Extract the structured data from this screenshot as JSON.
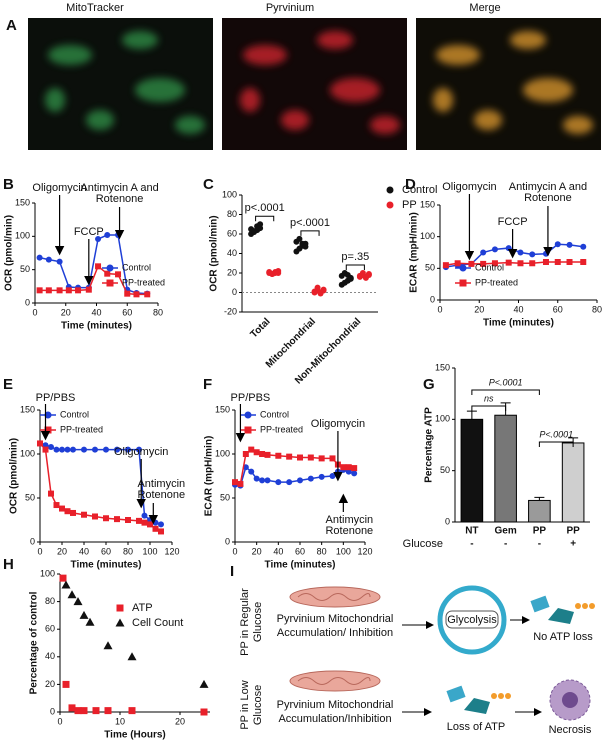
{
  "panel_a": {
    "letter": "A",
    "labels": [
      "MitoTracker",
      "Pyrvinium",
      "Merge"
    ]
  },
  "chart_data": [
    {
      "type": "line",
      "panel": "B",
      "xlabel": "Time (minutes)",
      "ylabel": "OCR (pmol/min)",
      "xlim": [
        0,
        80
      ],
      "xticks": [
        0,
        20,
        40,
        60,
        80
      ],
      "ylim": [
        0,
        150
      ],
      "yticks": [
        0,
        50,
        100,
        150
      ],
      "x": [
        3,
        9,
        16,
        22,
        28,
        35,
        41,
        47,
        54,
        60,
        66,
        73
      ],
      "series": [
        {
          "name": "Control",
          "color": "#1f3fd6",
          "marker": "circle",
          "values": [
            68,
            65,
            62,
            24,
            23,
            23,
            96,
            102,
            102,
            20,
            15,
            14
          ]
        },
        {
          "name": "PP-treated",
          "color": "#e8202a",
          "marker": "square",
          "values": [
            19,
            19,
            19,
            19,
            19,
            20,
            55,
            44,
            43,
            14,
            13,
            13
          ]
        }
      ],
      "annotations": [
        {
          "text": [
            "Oligomycin"
          ],
          "x": 16
        },
        {
          "text": [
            "FCCP"
          ],
          "x": 35
        },
        {
          "text": [
            "Antimycin A and",
            "Rotenone"
          ],
          "x": 55
        }
      ]
    },
    {
      "type": "strip",
      "panel": "C",
      "ylabel": "OCR (pmol/min)",
      "ylim": [
        -20,
        100
      ],
      "yticks": [
        -20,
        0,
        20,
        40,
        60,
        80,
        100
      ],
      "categories": [
        "Total",
        "Mitochondrial",
        "Non-Mitochondrial"
      ],
      "series": [
        {
          "name": "Control",
          "color": "#111111",
          "values": [
            [
              60,
              62,
              64,
              66,
              65,
              63,
              68,
              70
            ],
            [
              42,
              45,
              48,
              50,
              52,
              55,
              50,
              47
            ],
            [
              8,
              10,
              12,
              15,
              17,
              20,
              18,
              14
            ]
          ]
        },
        {
          "name": "PP",
          "color": "#e8202a",
          "values": [
            [
              20,
              19,
              21,
              20,
              21,
              19,
              20,
              22
            ],
            [
              0,
              2,
              -1,
              3,
              1,
              5,
              0,
              2
            ],
            [
              16,
              18,
              15,
              19,
              17,
              20,
              16,
              18
            ]
          ]
        }
      ],
      "p_values": [
        "p<.0001",
        "p<.0001",
        "p=.35"
      ]
    },
    {
      "type": "line",
      "panel": "D",
      "xlabel": "Time (minutes)",
      "ylabel": "ECAR (mpH/min)",
      "xlim": [
        0,
        80
      ],
      "xticks": [
        0,
        20,
        40,
        60,
        80
      ],
      "ylim": [
        0,
        150
      ],
      "yticks": [
        0,
        50,
        100,
        150
      ],
      "x": [
        3,
        9,
        16,
        22,
        28,
        35,
        41,
        47,
        54,
        60,
        66,
        73
      ],
      "series": [
        {
          "name": "Control",
          "color": "#1f3fd6",
          "marker": "circle",
          "values": [
            52,
            55,
            57,
            75,
            80,
            82,
            75,
            72,
            73,
            88,
            87,
            84
          ]
        },
        {
          "name": "PP-treated",
          "color": "#e8202a",
          "marker": "square",
          "values": [
            55,
            58,
            57,
            57,
            58,
            59,
            58,
            58,
            60,
            60,
            60,
            60
          ]
        }
      ],
      "annotations": [
        {
          "text": [
            "Oligomycin"
          ],
          "x": 15
        },
        {
          "text": [
            "FCCP"
          ],
          "x": 37
        },
        {
          "text": [
            "Antimycin A and",
            "Rotenone"
          ],
          "x": 55
        }
      ]
    },
    {
      "type": "line",
      "panel": "E",
      "xlabel": "Time (minutes)",
      "ylabel": "OCR (pmol/min)",
      "xlim": [
        0,
        120
      ],
      "xticks": [
        0,
        20,
        40,
        60,
        80,
        100,
        120
      ],
      "ylim": [
        0,
        150
      ],
      "yticks": [
        0,
        50,
        100,
        150
      ],
      "x": [
        0,
        5,
        10,
        15,
        20,
        25,
        30,
        40,
        50,
        60,
        70,
        80,
        90,
        95,
        100,
        105,
        110
      ],
      "series": [
        {
          "name": "Control",
          "color": "#1f3fd6",
          "marker": "circle",
          "values": [
            112,
            110,
            108,
            105,
            105,
            105,
            105,
            105,
            105,
            105,
            105,
            105,
            105,
            30,
            25,
            22,
            20
          ]
        },
        {
          "name": "PP-treated",
          "color": "#e8202a",
          "marker": "square",
          "values": [
            112,
            105,
            55,
            42,
            38,
            35,
            33,
            31,
            29,
            27,
            26,
            25,
            24,
            22,
            20,
            15,
            12
          ]
        }
      ],
      "annotations": [
        {
          "text": [
            "PP/PBS"
          ],
          "x": 5
        },
        {
          "text": [
            "Oligomycin"
          ],
          "x": 92
        },
        {
          "text": [
            "Antimycin",
            "Rotenone"
          ],
          "x": 103
        }
      ]
    },
    {
      "type": "line",
      "panel": "F",
      "xlabel": "Time (minutes)",
      "ylabel": "ECAR (mpH/min)",
      "xlim": [
        0,
        120
      ],
      "xticks": [
        0,
        20,
        40,
        60,
        80,
        100,
        120
      ],
      "ylim": [
        0,
        150
      ],
      "yticks": [
        0,
        50,
        100,
        150
      ],
      "x": [
        0,
        5,
        10,
        15,
        20,
        25,
        30,
        40,
        50,
        60,
        70,
        80,
        90,
        95,
        100,
        105,
        110
      ],
      "series": [
        {
          "name": "Control",
          "color": "#1f3fd6",
          "marker": "circle",
          "values": [
            65,
            64,
            85,
            80,
            72,
            70,
            70,
            68,
            68,
            70,
            72,
            74,
            75,
            80,
            82,
            80,
            78
          ]
        },
        {
          "name": "PP-treated",
          "color": "#e8202a",
          "marker": "square",
          "values": [
            68,
            66,
            100,
            105,
            102,
            100,
            99,
            98,
            97,
            96,
            96,
            95,
            95,
            88,
            85,
            85,
            84
          ]
        }
      ],
      "annotations": [
        {
          "text": [
            "PP/PBS"
          ],
          "x": 5
        },
        {
          "text": [
            "Oligomycin"
          ],
          "x": 95
        },
        {
          "text": [
            "Antimycin",
            "Rotenone"
          ],
          "x": 100
        }
      ]
    },
    {
      "type": "bar",
      "panel": "G",
      "ylabel": "Percentage ATP",
      "ylim": [
        0,
        150
      ],
      "yticks": [
        0,
        50,
        100,
        150
      ],
      "categories": [
        "NT",
        "Gem",
        "PP",
        "PP"
      ],
      "values": [
        100,
        104,
        21,
        77
      ],
      "errors": [
        8,
        12,
        3,
        5
      ],
      "colors": [
        "#111111",
        "#777777",
        "#9a9a9a",
        "#cfcfcf"
      ],
      "row_label": "Glucose",
      "glucose": [
        "-",
        "-",
        "-",
        "+"
      ],
      "annotations": [
        "ns",
        "P<.0001",
        "P<.0001"
      ]
    },
    {
      "type": "scatter",
      "panel": "H",
      "xlabel": "Time (Hours)",
      "ylabel": "Percentage of control",
      "xlim": [
        0,
        25
      ],
      "xticks": [
        0,
        10,
        20
      ],
      "ylim": [
        0,
        100
      ],
      "yticks": [
        0,
        20,
        40,
        60,
        80,
        100
      ],
      "series": [
        {
          "name": "ATP",
          "color": "#e8202a",
          "marker": "square",
          "x": [
            0.5,
            1,
            2,
            3,
            4,
            6,
            8,
            12,
            24
          ],
          "values": [
            97,
            20,
            3,
            1,
            1,
            1,
            1,
            1,
            0
          ]
        },
        {
          "name": "Cell Count",
          "color": "#111111",
          "marker": "triangle",
          "x": [
            1,
            2,
            3,
            4,
            5,
            8,
            12,
            24
          ],
          "values": [
            92,
            85,
            80,
            70,
            65,
            48,
            40,
            20
          ]
        }
      ]
    }
  ],
  "panel_i": {
    "letter": "I",
    "rows": [
      {
        "label": [
          "PP in Regular",
          "Glucose"
        ],
        "cause": [
          "Pyrvinium Mitochondrial",
          "Accumulation/ Inhibition"
        ],
        "process": "Glycolysis",
        "outcome": "No ATP loss"
      },
      {
        "label": [
          "PP in Low",
          "Glucose"
        ],
        "cause": [
          "Pyrvinium Mitochondrial",
          "Accumulation/Inhibition"
        ],
        "process": "Loss of ATP",
        "outcome": "Necrosis"
      }
    ]
  }
}
